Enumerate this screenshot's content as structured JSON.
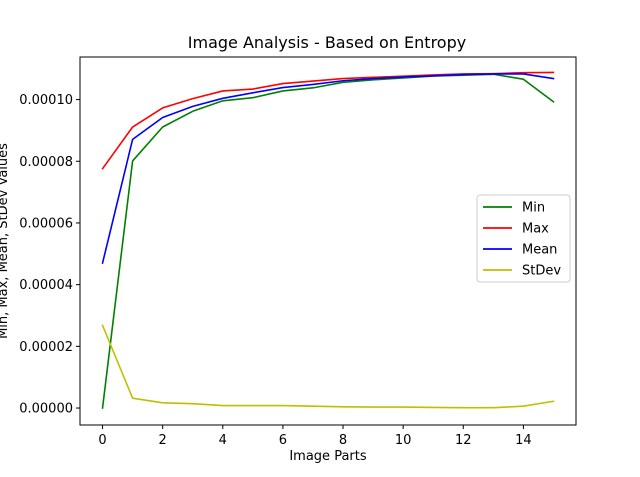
{
  "chart_data": {
    "type": "line",
    "title": "Image Analysis - Based on Entropy",
    "xlabel": "Image Parts",
    "ylabel": "Min, Max, Mean, StDev Values",
    "xlim": [
      -0.75,
      15.75
    ],
    "ylim": [
      -5.5e-06,
      0.0001138
    ],
    "xticks": [
      0,
      2,
      4,
      6,
      8,
      10,
      12,
      14
    ],
    "xtick_labels": [
      "0",
      "2",
      "4",
      "6",
      "8",
      "10",
      "12",
      "14"
    ],
    "yticks": [
      0.0,
      2e-05,
      4e-05,
      6e-05,
      8e-05,
      0.0001
    ],
    "ytick_labels": [
      "0.00000",
      "0.00002",
      "0.00004",
      "0.00006",
      "0.00008",
      "0.00010"
    ],
    "grid": false,
    "legend_position": "center-right",
    "x": [
      0,
      1,
      2,
      3,
      4,
      5,
      6,
      7,
      8,
      9,
      10,
      11,
      12,
      13,
      14,
      15
    ],
    "series": [
      {
        "name": "Min",
        "color": "#008000",
        "values": [
          0.0,
          8.01e-05,
          9.11e-05,
          9.62e-05,
          9.96e-05,
          0.0001006,
          0.0001028,
          0.0001038,
          0.0001056,
          0.0001064,
          0.000107,
          0.0001076,
          0.0001079,
          0.0001082,
          0.0001066,
          9.93e-05
        ]
      },
      {
        "name": "Max",
        "color": "#ff0000",
        "values": [
          7.76e-05,
          9.11e-05,
          9.73e-05,
          0.0001003,
          0.0001028,
          0.0001034,
          0.0001052,
          0.000106,
          0.0001068,
          0.0001072,
          0.0001076,
          0.000108,
          0.0001083,
          0.0001084,
          0.0001087,
          0.0001088
        ]
      },
      {
        "name": "Mean",
        "color": "#0000ff",
        "values": [
          4.7e-05,
          8.71e-05,
          9.42e-05,
          9.78e-05,
          0.0001004,
          0.0001022,
          0.0001039,
          0.0001049,
          0.0001061,
          0.0001068,
          0.0001073,
          0.0001077,
          0.0001081,
          0.0001083,
          0.0001083,
          0.0001068
        ]
      },
      {
        "name": "StDev",
        "color": "#bfbf00",
        "values": [
          2.68e-05,
          3.2e-06,
          1.7e-06,
          1.4e-06,
          8e-07,
          8e-07,
          8e-07,
          6e-07,
          4e-07,
          3e-07,
          3e-07,
          2e-07,
          1e-07,
          1e-07,
          6e-07,
          2.2e-06
        ]
      }
    ]
  }
}
